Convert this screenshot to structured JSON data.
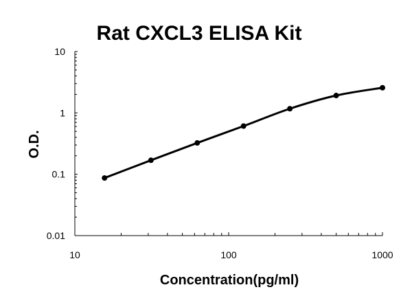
{
  "chart_data": {
    "type": "line",
    "title": "Rat CXCL3 ELISA Kit",
    "xlabel": "Concentration(pg/ml)",
    "ylabel": "O.D.",
    "x_scale": "log",
    "y_scale": "log",
    "xlim": [
      10,
      1000
    ],
    "ylim": [
      0.01,
      10
    ],
    "x_ticks": [
      "10",
      "100",
      "1000"
    ],
    "y_ticks": [
      "0.01",
      "0.1",
      "1",
      "10"
    ],
    "grid": false,
    "series": [
      {
        "x": [
          15.6,
          31.25,
          62.5,
          125,
          250,
          500,
          1000
        ],
        "y": [
          0.087,
          0.169,
          0.324,
          0.61,
          1.17,
          1.92,
          2.57
        ],
        "color": "#000000",
        "marker": "circle"
      }
    ]
  }
}
